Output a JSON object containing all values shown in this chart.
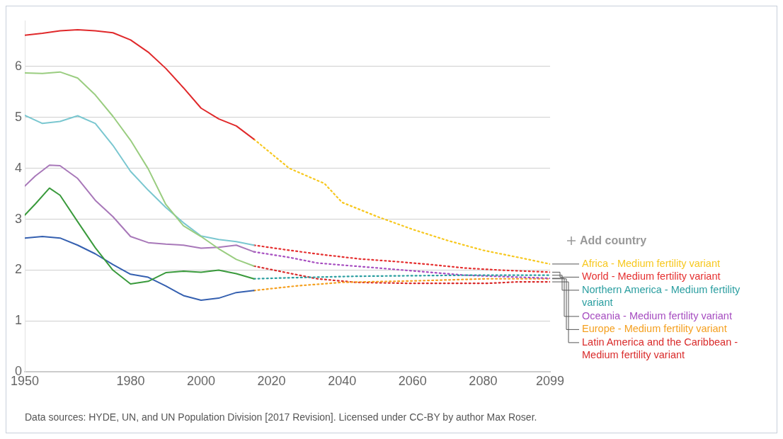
{
  "chart_data": {
    "type": "line",
    "xlim": [
      1950,
      2099
    ],
    "xticks": [
      1950,
      1980,
      2000,
      2020,
      2040,
      2060,
      2080,
      2099
    ],
    "ylim": [
      0,
      6.9
    ],
    "yticks": [
      0,
      1,
      2,
      3,
      4,
      5,
      6
    ],
    "grid": "y",
    "legend": false,
    "marker": "none",
    "annotations": [
      "Add country",
      "Data sources: HYDE, UN, and UN Population Division [2017 Revision]. Licensed under CC-BY by author Max Roser."
    ],
    "series": [
      {
        "color": "#e0292b",
        "x": [
          1950,
          1955,
          1960,
          1965,
          1970,
          1975,
          1980,
          1985,
          1990,
          1995,
          2000,
          2005,
          2010,
          2015
        ],
        "values": [
          6.61,
          6.65,
          6.7,
          6.72,
          6.7,
          6.66,
          6.52,
          6.28,
          5.96,
          5.58,
          5.18,
          4.97,
          4.83,
          4.57
        ]
      },
      {
        "color": "#9acd80",
        "x": [
          1950,
          1955,
          1960,
          1965,
          1970,
          1975,
          1980,
          1985,
          1990,
          1995,
          2000,
          2005,
          2010,
          2015
        ],
        "values": [
          5.87,
          5.86,
          5.89,
          5.77,
          5.44,
          5.02,
          4.55,
          3.99,
          3.29,
          2.87,
          2.66,
          2.42,
          2.21,
          2.08
        ]
      },
      {
        "color": "#7ac7d0",
        "x": [
          1950,
          1955,
          1960,
          1965,
          1970,
          1975,
          1980,
          1985,
          1990,
          1995,
          2000,
          2005,
          2010,
          2015
        ],
        "values": [
          5.04,
          4.88,
          4.92,
          5.03,
          4.88,
          4.45,
          3.94,
          3.57,
          3.23,
          2.93,
          2.67,
          2.6,
          2.56,
          2.49
        ]
      },
      {
        "color": "#a878b9",
        "x": [
          1950,
          1953,
          1957,
          1960,
          1965,
          1970,
          1975,
          1980,
          1985,
          1990,
          1995,
          2000,
          2005,
          2010,
          2015
        ],
        "values": [
          3.65,
          3.85,
          4.06,
          4.05,
          3.8,
          3.37,
          3.05,
          2.66,
          2.54,
          2.51,
          2.49,
          2.43,
          2.45,
          2.49,
          2.36
        ]
      },
      {
        "color": "#3a9a3c",
        "x": [
          1950,
          1953,
          1957,
          1960,
          1965,
          1970,
          1975,
          1980,
          1985,
          1990,
          1995,
          2000,
          2005,
          2010,
          2015
        ],
        "values": [
          3.08,
          3.3,
          3.61,
          3.47,
          2.95,
          2.44,
          2.0,
          1.73,
          1.78,
          1.95,
          1.98,
          1.96,
          2.0,
          1.93,
          1.83
        ]
      },
      {
        "color": "#3560b0",
        "x": [
          1950,
          1955,
          1960,
          1965,
          1970,
          1975,
          1980,
          1985,
          1990,
          1995,
          2000,
          2005,
          2010,
          2015
        ],
        "values": [
          2.63,
          2.66,
          2.63,
          2.49,
          2.32,
          2.11,
          1.92,
          1.86,
          1.69,
          1.5,
          1.41,
          1.45,
          1.56,
          1.6
        ]
      },
      {
        "name": "Africa - Medium fertility variant",
        "color": "#f7c820",
        "line_style": "dotted",
        "x": [
          2015,
          2025,
          2035,
          2040,
          2050,
          2060,
          2070,
          2080,
          2090,
          2099
        ],
        "values": [
          4.57,
          4.0,
          3.7,
          3.33,
          3.05,
          2.8,
          2.58,
          2.39,
          2.25,
          2.12
        ]
      },
      {
        "name": "World - Medium fertility variant",
        "color": "#e53030",
        "line_style": "dotted",
        "x": [
          2015,
          2025,
          2035,
          2045,
          2055,
          2065,
          2075,
          2085,
          2099
        ],
        "values": [
          2.49,
          2.39,
          2.3,
          2.22,
          2.17,
          2.11,
          2.04,
          2.0,
          1.96
        ]
      },
      {
        "name": "Northern America - Medium fertility variant",
        "color": "#2a9ea0",
        "line_style": "dotted",
        "x": [
          2015,
          2025,
          2044,
          2075,
          2099
        ],
        "values": [
          1.83,
          1.85,
          1.88,
          1.9,
          1.9
        ]
      },
      {
        "name": "Oceania - Medium fertility variant",
        "color": "#a64dc0",
        "line_style": "dotted",
        "x": [
          2015,
          2025,
          2033,
          2054,
          2075,
          2099
        ],
        "values": [
          2.36,
          2.25,
          2.14,
          2.02,
          1.9,
          1.84
        ]
      },
      {
        "name": "Europe - Medium fertility variant",
        "color": "#f5a020",
        "line_style": "dotted",
        "x": [
          2015,
          2027,
          2040,
          2061,
          2081,
          2099
        ],
        "values": [
          1.6,
          1.69,
          1.76,
          1.79,
          1.83,
          1.83
        ]
      },
      {
        "name": "Latin America and the Caribbean - Medium fertility variant",
        "color": "#d92b2b",
        "line_style": "dotted",
        "x": [
          2015,
          2025,
          2033,
          2044,
          2060,
          2081,
          2090,
          2099
        ],
        "values": [
          2.08,
          1.94,
          1.83,
          1.76,
          1.74,
          1.74,
          1.77,
          1.77
        ]
      }
    ]
  }
}
